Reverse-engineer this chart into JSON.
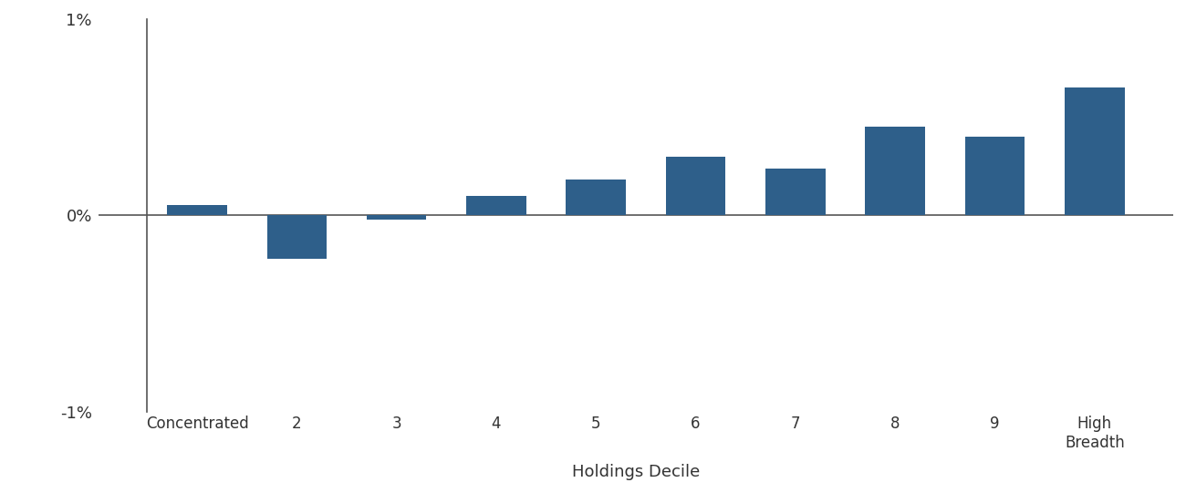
{
  "categories": [
    "Concentrated",
    "2",
    "3",
    "4",
    "5",
    "6",
    "7",
    "8",
    "9",
    "High\nBreadth"
  ],
  "values": [
    0.0005,
    -0.0022,
    -0.0002,
    0.001,
    0.0018,
    0.003,
    0.0024,
    0.0045,
    0.004,
    0.0065
  ],
  "bar_color": "#2e5f8a",
  "xlabel": "Holdings Decile",
  "ylim": [
    -0.01,
    0.01
  ],
  "yticks": [
    -0.01,
    0.0,
    0.01
  ],
  "yticklabels": [
    "-1%",
    "0%",
    "1%"
  ],
  "background_color": "#ffffff",
  "bar_width": 0.6,
  "spine_color": "#555555",
  "tick_color": "#333333",
  "xlabel_fontsize": 13,
  "ytick_fontsize": 13,
  "xtick_fontsize": 12
}
